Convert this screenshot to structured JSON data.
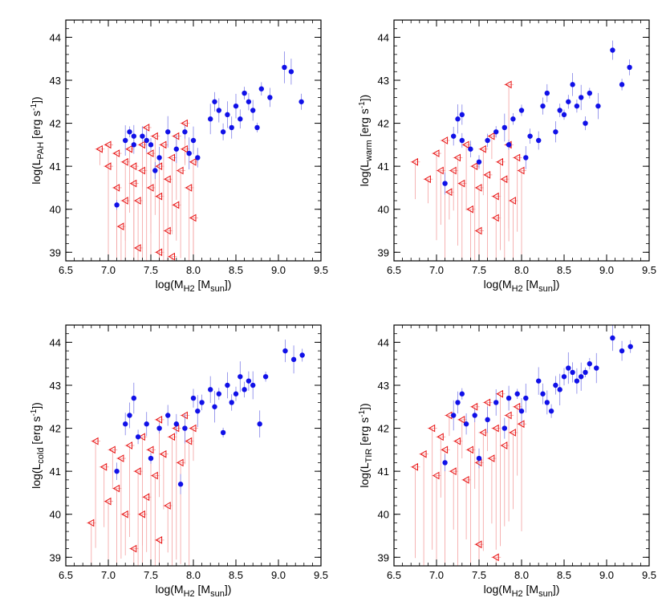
{
  "colors": {
    "detection": "#1010e8",
    "upper_limit": "#e81010",
    "errorbar_red": "#f4a0a0",
    "errorbar_blue": "#8080e8"
  },
  "chart_data": [
    {
      "type": "scatter",
      "panel": "top-left",
      "xlabel_main": "log(M",
      "xlabel_sub": "H2",
      "xlabel_mid": " [M",
      "xlabel_sub2": "sun",
      "xlabel_end": "])",
      "ylabel_main": "log(L",
      "ylabel_sub": "PAH",
      "ylabel_mid": " [erg s",
      "ylabel_sup": "-1",
      "ylabel_end": "])",
      "xlim": [
        6.5,
        9.5
      ],
      "ylim": [
        38.8,
        44.4
      ],
      "xticks": [
        "6.5",
        "7.0",
        "7.5",
        "8.0",
        "8.5",
        "9.0",
        "9.5"
      ],
      "yticks": [
        "39",
        "40",
        "41",
        "42",
        "43",
        "44"
      ],
      "series": [
        {
          "marker": "filled-circle",
          "points": [
            [
              7.1,
              40.1
            ],
            [
              7.2,
              41.6
            ],
            [
              7.25,
              41.8
            ],
            [
              7.3,
              41.7
            ],
            [
              7.3,
              41.5
            ],
            [
              7.4,
              41.7
            ],
            [
              7.45,
              41.6
            ],
            [
              7.5,
              41.5
            ],
            [
              7.55,
              40.9
            ],
            [
              7.6,
              41.2
            ],
            [
              7.7,
              41.8
            ],
            [
              7.8,
              41.4
            ],
            [
              7.9,
              41.8
            ],
            [
              7.95,
              41.3
            ],
            [
              8.0,
              41.6
            ],
            [
              8.05,
              41.2
            ],
            [
              8.2,
              42.1
            ],
            [
              8.25,
              42.5
            ],
            [
              8.3,
              42.3
            ],
            [
              8.35,
              41.8
            ],
            [
              8.4,
              42.2
            ],
            [
              8.45,
              41.9
            ],
            [
              8.5,
              42.4
            ],
            [
              8.55,
              42.1
            ],
            [
              8.6,
              42.7
            ],
            [
              8.65,
              42.5
            ],
            [
              8.7,
              42.3
            ],
            [
              8.75,
              41.9
            ],
            [
              8.8,
              42.8
            ],
            [
              8.9,
              42.6
            ],
            [
              9.07,
              43.3
            ],
            [
              9.15,
              43.2
            ],
            [
              9.27,
              42.5
            ]
          ]
        },
        {
          "marker": "open-triangle-left",
          "points": [
            [
              6.9,
              41.4
            ],
            [
              7.0,
              41.0
            ],
            [
              7.0,
              41.5
            ],
            [
              7.1,
              41.3
            ],
            [
              7.1,
              40.5
            ],
            [
              7.15,
              39.6
            ],
            [
              7.2,
              41.1
            ],
            [
              7.2,
              40.2
            ],
            [
              7.25,
              41.4
            ],
            [
              7.3,
              41.0
            ],
            [
              7.3,
              40.6
            ],
            [
              7.35,
              40.2
            ],
            [
              7.4,
              41.5
            ],
            [
              7.4,
              40.9
            ],
            [
              7.45,
              41.9
            ],
            [
              7.5,
              41.3
            ],
            [
              7.5,
              40.5
            ],
            [
              7.55,
              41.7
            ],
            [
              7.6,
              41.0
            ],
            [
              7.6,
              40.3
            ],
            [
              7.65,
              41.5
            ],
            [
              7.7,
              40.7
            ],
            [
              7.7,
              39.5
            ],
            [
              7.75,
              41.2
            ],
            [
              7.8,
              40.1
            ],
            [
              7.8,
              41.7
            ],
            [
              7.85,
              40.9
            ],
            [
              7.9,
              41.4
            ],
            [
              7.9,
              42.0
            ],
            [
              7.95,
              40.5
            ],
            [
              8.0,
              41.1
            ],
            [
              7.35,
              39.1
            ],
            [
              7.6,
              39.0
            ],
            [
              7.75,
              38.9
            ],
            [
              8.0,
              39.8
            ]
          ]
        }
      ]
    },
    {
      "type": "scatter",
      "panel": "top-right",
      "xlabel_main": "log(M",
      "xlabel_sub": "H2",
      "xlabel_mid": " [M",
      "xlabel_sub2": "sun",
      "xlabel_end": "])",
      "ylabel_main": "log(L",
      "ylabel_sub": "warm",
      "ylabel_mid": " [erg s",
      "ylabel_sup": "-1",
      "ylabel_end": "])",
      "xlim": [
        6.5,
        9.5
      ],
      "ylim": [
        38.8,
        44.4
      ],
      "xticks": [
        "6.5",
        "7.0",
        "7.5",
        "8.0",
        "8.5",
        "9.0",
        "9.5"
      ],
      "yticks": [
        "39",
        "40",
        "41",
        "42",
        "43",
        "44"
      ],
      "series": [
        {
          "marker": "filled-circle",
          "points": [
            [
              7.1,
              40.6
            ],
            [
              7.2,
              41.7
            ],
            [
              7.25,
              42.1
            ],
            [
              7.3,
              42.2
            ],
            [
              7.3,
              41.6
            ],
            [
              7.4,
              41.4
            ],
            [
              7.5,
              41.1
            ],
            [
              7.6,
              41.6
            ],
            [
              7.7,
              41.8
            ],
            [
              7.8,
              41.9
            ],
            [
              7.85,
              41.5
            ],
            [
              7.9,
              42.1
            ],
            [
              8.0,
              42.3
            ],
            [
              8.05,
              41.2
            ],
            [
              8.1,
              41.7
            ],
            [
              8.2,
              41.6
            ],
            [
              8.25,
              42.4
            ],
            [
              8.3,
              42.7
            ],
            [
              8.4,
              41.8
            ],
            [
              8.45,
              42.3
            ],
            [
              8.5,
              42.2
            ],
            [
              8.55,
              42.5
            ],
            [
              8.6,
              42.9
            ],
            [
              8.65,
              42.4
            ],
            [
              8.7,
              42.6
            ],
            [
              8.75,
              42.0
            ],
            [
              8.8,
              42.7
            ],
            [
              8.9,
              42.4
            ],
            [
              9.07,
              43.7
            ],
            [
              9.18,
              42.9
            ],
            [
              9.27,
              43.3
            ]
          ]
        },
        {
          "marker": "open-triangle-left",
          "points": [
            [
              6.75,
              41.1
            ],
            [
              6.9,
              40.7
            ],
            [
              7.0,
              41.3
            ],
            [
              7.05,
              40.9
            ],
            [
              7.1,
              41.6
            ],
            [
              7.15,
              40.4
            ],
            [
              7.2,
              40.9
            ],
            [
              7.25,
              41.2
            ],
            [
              7.3,
              40.6
            ],
            [
              7.35,
              41.5
            ],
            [
              7.4,
              40.0
            ],
            [
              7.45,
              41.0
            ],
            [
              7.5,
              40.5
            ],
            [
              7.55,
              41.4
            ],
            [
              7.6,
              40.8
            ],
            [
              7.65,
              41.7
            ],
            [
              7.7,
              40.3
            ],
            [
              7.75,
              41.1
            ],
            [
              7.8,
              40.7
            ],
            [
              7.85,
              41.5
            ],
            [
              7.9,
              40.2
            ],
            [
              7.95,
              41.2
            ],
            [
              8.0,
              40.9
            ],
            [
              7.5,
              39.5
            ],
            [
              7.7,
              39.8
            ],
            [
              7.85,
              42.9
            ]
          ]
        }
      ]
    },
    {
      "type": "scatter",
      "panel": "bottom-left",
      "xlabel_main": "log(M",
      "xlabel_sub": "H2",
      "xlabel_mid": " [M",
      "xlabel_sub2": "sun",
      "xlabel_end": "])",
      "ylabel_main": "log(L",
      "ylabel_sub": "cold",
      "ylabel_mid": " [erg s",
      "ylabel_sup": "-1",
      "ylabel_end": "])",
      "xlim": [
        6.5,
        9.5
      ],
      "ylim": [
        38.8,
        44.4
      ],
      "xticks": [
        "6.5",
        "7.0",
        "7.5",
        "8.0",
        "8.5",
        "9.0",
        "9.5"
      ],
      "yticks": [
        "39",
        "40",
        "41",
        "42",
        "43",
        "44"
      ],
      "series": [
        {
          "marker": "filled-circle",
          "points": [
            [
              7.1,
              41.0
            ],
            [
              7.2,
              42.1
            ],
            [
              7.25,
              42.3
            ],
            [
              7.3,
              42.7
            ],
            [
              7.35,
              41.8
            ],
            [
              7.45,
              42.1
            ],
            [
              7.5,
              41.3
            ],
            [
              7.6,
              42.0
            ],
            [
              7.7,
              42.3
            ],
            [
              7.8,
              42.1
            ],
            [
              7.85,
              40.7
            ],
            [
              7.9,
              42.0
            ],
            [
              8.0,
              42.7
            ],
            [
              8.05,
              42.4
            ],
            [
              8.1,
              42.6
            ],
            [
              8.2,
              42.9
            ],
            [
              8.25,
              42.5
            ],
            [
              8.3,
              42.8
            ],
            [
              8.35,
              41.9
            ],
            [
              8.4,
              43.0
            ],
            [
              8.45,
              42.6
            ],
            [
              8.5,
              42.8
            ],
            [
              8.55,
              43.2
            ],
            [
              8.6,
              42.9
            ],
            [
              8.65,
              43.1
            ],
            [
              8.7,
              43.0
            ],
            [
              8.78,
              42.1
            ],
            [
              8.85,
              43.2
            ],
            [
              9.08,
              43.8
            ],
            [
              9.18,
              43.6
            ],
            [
              9.28,
              43.7
            ]
          ]
        },
        {
          "marker": "open-triangle-left",
          "points": [
            [
              6.8,
              39.8
            ],
            [
              6.85,
              41.7
            ],
            [
              6.95,
              41.1
            ],
            [
              7.0,
              40.3
            ],
            [
              7.05,
              41.5
            ],
            [
              7.1,
              40.6
            ],
            [
              7.15,
              41.3
            ],
            [
              7.2,
              40.0
            ],
            [
              7.25,
              41.6
            ],
            [
              7.3,
              39.2
            ],
            [
              7.35,
              41.0
            ],
            [
              7.4,
              41.8
            ],
            [
              7.45,
              40.4
            ],
            [
              7.5,
              41.5
            ],
            [
              7.55,
              40.9
            ],
            [
              7.6,
              42.2
            ],
            [
              7.65,
              41.4
            ],
            [
              7.7,
              40.2
            ],
            [
              7.75,
              41.8
            ],
            [
              7.8,
              42.0
            ],
            [
              7.85,
              41.2
            ],
            [
              7.9,
              42.3
            ],
            [
              7.95,
              41.7
            ],
            [
              8.0,
              42.0
            ],
            [
              7.4,
              40.0
            ],
            [
              7.6,
              39.4
            ]
          ]
        }
      ]
    },
    {
      "type": "scatter",
      "panel": "bottom-right",
      "xlabel_main": "log(M",
      "xlabel_sub": "H2",
      "xlabel_mid": " [M",
      "xlabel_sub2": "sun",
      "xlabel_end": "])",
      "ylabel_main": "log(L",
      "ylabel_sub": "TIR",
      "ylabel_mid": " [erg s",
      "ylabel_sup": "-1",
      "ylabel_end": "])",
      "xlim": [
        6.5,
        9.5
      ],
      "ylim": [
        38.8,
        44.4
      ],
      "xticks": [
        "6.5",
        "7.0",
        "7.5",
        "8.0",
        "8.5",
        "9.0",
        "9.5"
      ],
      "yticks": [
        "39",
        "40",
        "41",
        "42",
        "43",
        "44"
      ],
      "series": [
        {
          "marker": "filled-circle",
          "points": [
            [
              7.1,
              41.2
            ],
            [
              7.2,
              42.3
            ],
            [
              7.25,
              42.6
            ],
            [
              7.3,
              42.8
            ],
            [
              7.35,
              42.1
            ],
            [
              7.45,
              42.3
            ],
            [
              7.5,
              41.3
            ],
            [
              7.6,
              42.2
            ],
            [
              7.7,
              42.6
            ],
            [
              7.8,
              42.0
            ],
            [
              7.85,
              42.7
            ],
            [
              7.95,
              42.8
            ],
            [
              8.0,
              42.4
            ],
            [
              8.05,
              42.7
            ],
            [
              8.2,
              43.1
            ],
            [
              8.25,
              42.8
            ],
            [
              8.3,
              42.6
            ],
            [
              8.35,
              42.4
            ],
            [
              8.4,
              43.0
            ],
            [
              8.45,
              42.9
            ],
            [
              8.5,
              43.2
            ],
            [
              8.55,
              43.4
            ],
            [
              8.6,
              43.3
            ],
            [
              8.65,
              43.1
            ],
            [
              8.7,
              43.2
            ],
            [
              8.75,
              43.3
            ],
            [
              8.8,
              43.5
            ],
            [
              8.88,
              43.4
            ],
            [
              9.07,
              44.1
            ],
            [
              9.18,
              43.8
            ],
            [
              9.28,
              43.9
            ]
          ]
        },
        {
          "marker": "open-triangle-left",
          "points": [
            [
              6.75,
              41.1
            ],
            [
              6.85,
              41.4
            ],
            [
              6.95,
              42.0
            ],
            [
              7.0,
              40.9
            ],
            [
              7.05,
              41.8
            ],
            [
              7.1,
              41.5
            ],
            [
              7.15,
              42.3
            ],
            [
              7.2,
              41.0
            ],
            [
              7.25,
              41.7
            ],
            [
              7.3,
              42.2
            ],
            [
              7.35,
              40.8
            ],
            [
              7.4,
              41.5
            ],
            [
              7.45,
              42.5
            ],
            [
              7.5,
              41.2
            ],
            [
              7.55,
              41.9
            ],
            [
              7.6,
              42.6
            ],
            [
              7.65,
              41.3
            ],
            [
              7.7,
              42.0
            ],
            [
              7.75,
              42.8
            ],
            [
              7.8,
              41.6
            ],
            [
              7.85,
              42.3
            ],
            [
              7.9,
              41.9
            ],
            [
              7.95,
              42.5
            ],
            [
              8.0,
              42.1
            ],
            [
              7.5,
              39.3
            ],
            [
              7.7,
              39.0
            ]
          ]
        }
      ]
    }
  ]
}
